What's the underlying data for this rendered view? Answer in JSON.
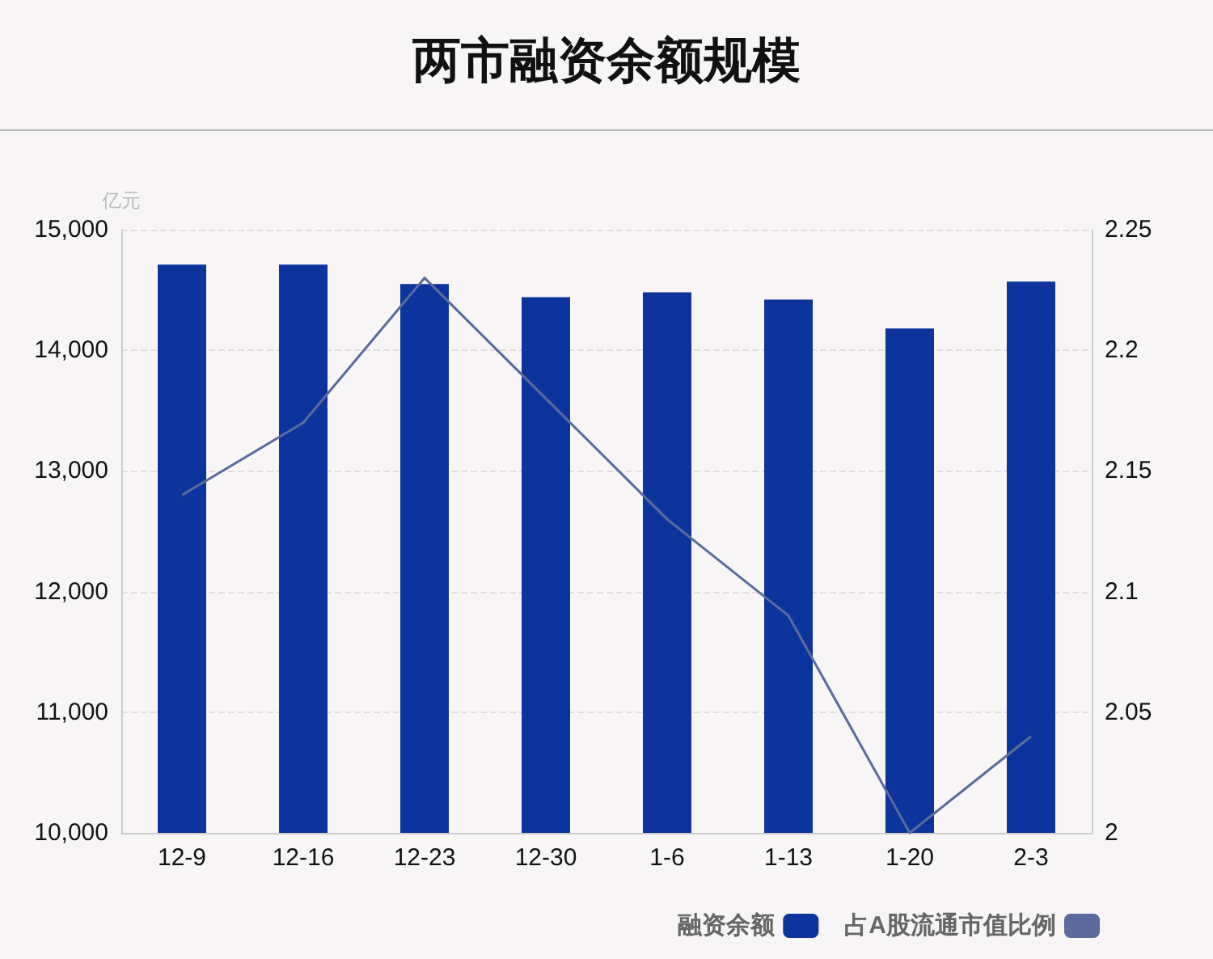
{
  "chart_data": {
    "type": "bar",
    "title": "两市融资余额规模",
    "ylabel": "亿元",
    "categories": [
      "12-9",
      "12-16",
      "12-23",
      "12-30",
      "1-6",
      "1-13",
      "1-20",
      "2-3"
    ],
    "series": [
      {
        "name": "融资余额",
        "color": "#0c349c",
        "values": [
          14710,
          14710,
          14550,
          14440,
          14480,
          14420,
          14180,
          14570
        ]
      },
      {
        "name": "占A股流通市值比例",
        "type": "line",
        "axis": "y2",
        "color": "#5b6b9b",
        "marker": "none",
        "values": [
          2.14,
          2.17,
          2.23,
          2.18,
          2.13,
          2.09,
          2.0,
          2.04
        ]
      }
    ],
    "ylim": [
      10000,
      15000
    ],
    "yticks": [
      {
        "value": 10000,
        "label": "10,000"
      },
      {
        "value": 11000,
        "label": "11,000"
      },
      {
        "value": 12000,
        "label": "12,000"
      },
      {
        "value": 13000,
        "label": "13,000"
      },
      {
        "value": 14000,
        "label": "14,000"
      },
      {
        "value": 15000,
        "label": "15,000"
      }
    ],
    "y2lim": [
      2,
      2.25
    ],
    "y2ticks": [
      2,
      2.05,
      2.1,
      2.15,
      2.2,
      2.25
    ],
    "grid": "y",
    "legend": "bottom right"
  }
}
